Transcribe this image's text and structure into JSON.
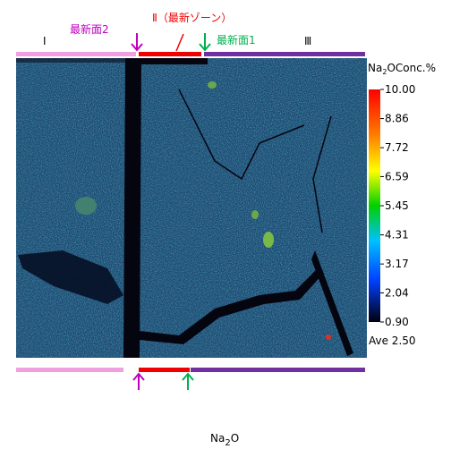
{
  "annotations": {
    "surface2": "最新面2",
    "zone2": "Ⅱ（最新ゾーン）",
    "surface1": "最新面1",
    "zone1": "Ⅰ",
    "zone3": "Ⅲ"
  },
  "colorbar": {
    "title_a": "Na",
    "title_sub": "2",
    "title_b": "OConc.%",
    "ticks": [
      {
        "value": 10,
        "label": "10.00"
      },
      {
        "value": 8.86,
        "label": "8.86"
      },
      {
        "value": 7.72,
        "label": "7.72"
      },
      {
        "value": 6.59,
        "label": "6.59"
      },
      {
        "value": 5.45,
        "label": "5.45"
      },
      {
        "value": 4.31,
        "label": "4.31"
      },
      {
        "value": 3.17,
        "label": "3.17"
      },
      {
        "value": 2.04,
        "label": "2.04"
      },
      {
        "value": 0.9,
        "label": "0.90"
      }
    ],
    "average": "Ave 2.50"
  },
  "caption": {
    "a": "Na",
    "sub": "2",
    "b": "O"
  }
}
